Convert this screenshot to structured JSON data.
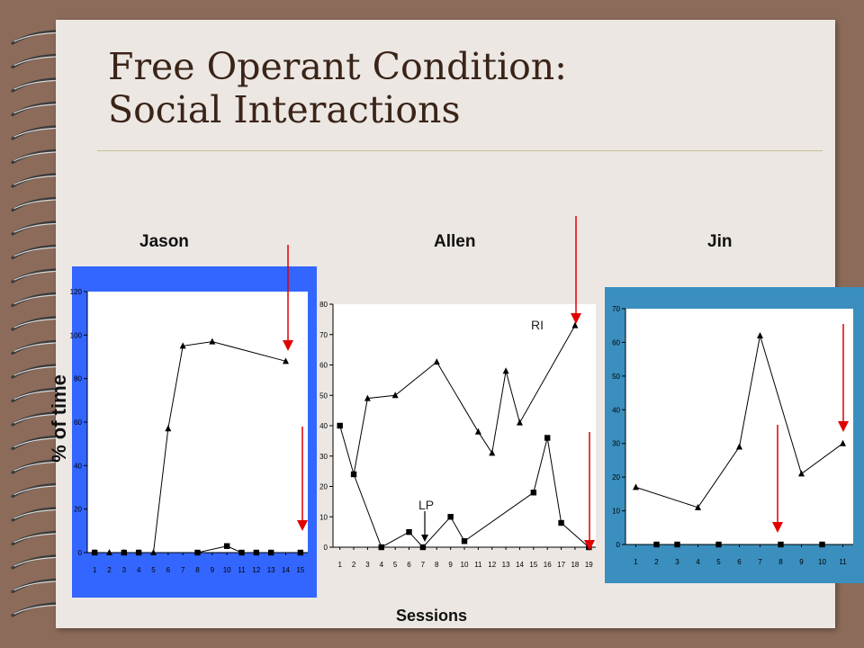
{
  "title": {
    "line1": "Free Operant Condition:",
    "line2": "Social Interactions"
  },
  "participants": {
    "jason": "Jason",
    "allen": "Allen",
    "jin": "Jin"
  },
  "xlabel": "Sessions",
  "ylabel": "% of time",
  "annotations": {
    "ri": "RI",
    "lp": "LP"
  },
  "colors": {
    "jason_panel": "#3366ff",
    "jin_panel": "#3a8fbf",
    "arrow": "#e00000",
    "page": "#ece7e3",
    "frame": "#8c6b5a"
  },
  "chart_data": [
    {
      "type": "line",
      "name": "Jason",
      "x": [
        1,
        2,
        3,
        4,
        5,
        6,
        7,
        8,
        9,
        10,
        11,
        12,
        13,
        14,
        15
      ],
      "ylim": [
        0,
        120
      ],
      "yticks": [
        0,
        20,
        40,
        60,
        80,
        100,
        120
      ],
      "series": [
        {
          "marker": "triangle",
          "points": [
            [
              1,
              0
            ],
            [
              2,
              0
            ],
            [
              3,
              0
            ],
            [
              4,
              0
            ],
            [
              5,
              0
            ],
            [
              6,
              57
            ],
            [
              7,
              95
            ],
            [
              9,
              97
            ],
            [
              14,
              88
            ]
          ]
        },
        {
          "marker": "square",
          "points": [
            [
              1,
              0
            ],
            [
              3,
              0
            ],
            [
              4,
              0
            ],
            [
              8,
              0
            ],
            [
              10,
              3
            ],
            [
              11,
              0
            ],
            [
              12,
              0
            ],
            [
              13,
              0
            ],
            [
              15,
              0
            ]
          ]
        }
      ]
    },
    {
      "type": "line",
      "name": "Allen",
      "x": [
        1,
        2,
        3,
        4,
        5,
        6,
        7,
        8,
        9,
        10,
        11,
        12,
        13,
        14,
        15,
        16,
        17,
        18,
        19
      ],
      "ylim": [
        0,
        80
      ],
      "yticks": [
        0,
        10,
        20,
        30,
        40,
        50,
        60,
        70,
        80
      ],
      "series": [
        {
          "marker": "triangle",
          "points": [
            [
              2,
              24
            ],
            [
              3,
              49
            ],
            [
              5,
              50
            ],
            [
              8,
              61
            ],
            [
              11,
              38
            ],
            [
              12,
              31
            ],
            [
              13,
              58
            ],
            [
              14,
              41
            ],
            [
              18,
              73
            ]
          ]
        },
        {
          "marker": "square",
          "points": [
            [
              1,
              40
            ],
            [
              2,
              24
            ],
            [
              4,
              0
            ],
            [
              6,
              5
            ],
            [
              7,
              0
            ],
            [
              9,
              10
            ],
            [
              10,
              2
            ],
            [
              15,
              18
            ],
            [
              16,
              36
            ],
            [
              17,
              8
            ],
            [
              19,
              0
            ]
          ]
        }
      ]
    },
    {
      "type": "line",
      "name": "Jin",
      "x": [
        1,
        2,
        3,
        4,
        5,
        6,
        7,
        8,
        9,
        10,
        11
      ],
      "ylim": [
        0,
        70
      ],
      "yticks": [
        0,
        10,
        20,
        30,
        40,
        50,
        60,
        70
      ],
      "series": [
        {
          "marker": "triangle",
          "points": [
            [
              1,
              17
            ],
            [
              4,
              11
            ],
            [
              6,
              29
            ],
            [
              7,
              62
            ],
            [
              9,
              21
            ],
            [
              11,
              30
            ]
          ]
        },
        {
          "marker": "square",
          "points": [
            [
              2,
              0
            ],
            [
              3,
              0
            ],
            [
              5,
              0
            ],
            [
              8,
              0
            ],
            [
              10,
              0
            ]
          ]
        }
      ]
    }
  ]
}
